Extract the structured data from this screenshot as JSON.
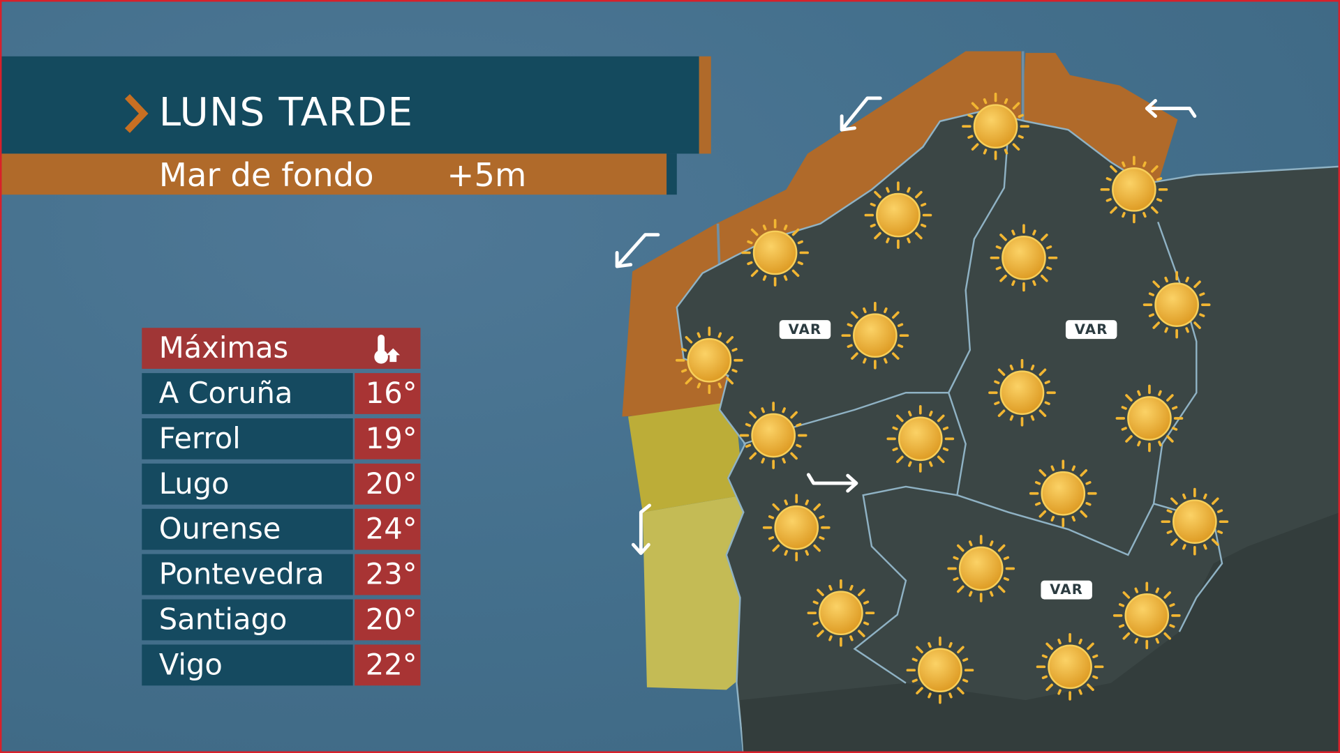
{
  "header": {
    "title": "LUNS TARDE",
    "subtitle": "Mar de fondo",
    "subtitle_value": "+5m",
    "chevron_icon": "chevron-right-icon"
  },
  "table": {
    "header": "Máximas",
    "header_icon": "thermometer-up-icon",
    "rows": [
      {
        "city": "A Coruña",
        "temp": "16°"
      },
      {
        "city": "Ferrol",
        "temp": "19°"
      },
      {
        "city": "Lugo",
        "temp": "20°"
      },
      {
        "city": "Ourense",
        "temp": "24°"
      },
      {
        "city": "Pontevedra",
        "temp": "23°"
      },
      {
        "city": "Santiago",
        "temp": "20°"
      },
      {
        "city": "Vigo",
        "temp": "22°"
      }
    ]
  },
  "map": {
    "wind_labels": [
      "VAR",
      "VAR",
      "VAR"
    ],
    "weather_icon": "sun-icon",
    "sun_count": 20,
    "colors": {
      "warning_orange": "#b06a2a",
      "warning_yellow": "#c2b33c",
      "land": "#3b4645",
      "sea": "#44708d"
    }
  }
}
